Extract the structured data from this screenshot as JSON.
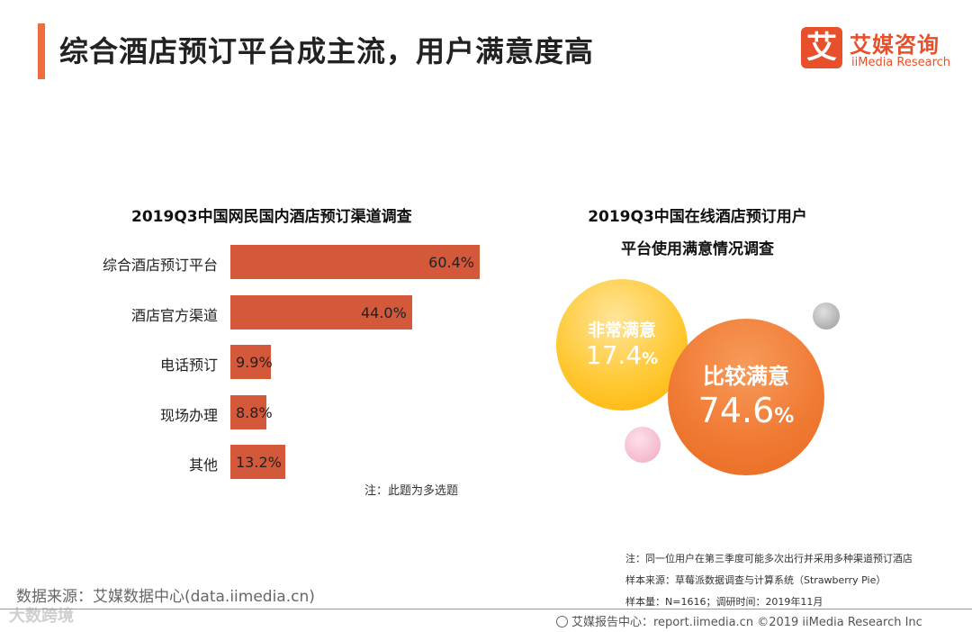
{
  "header": {
    "title": "综合酒店预订平台成主流，用户满意度高",
    "accent_color": "#ef6c3e"
  },
  "logo": {
    "mark": "艾",
    "cn": "艾媒咨询",
    "en": "iiMedia Research"
  },
  "chart_data": [
    {
      "type": "bar",
      "title": "2019Q3中国网民国内酒店预订渠道调查",
      "categories": [
        "综合酒店预订平台",
        "酒店官方渠道",
        "电话预订",
        "现场办理",
        "其他"
      ],
      "values": [
        60.4,
        44.0,
        9.9,
        8.8,
        13.2
      ],
      "value_labels": [
        "60.4%",
        "44.0%",
        "9.9%",
        "8.8%",
        "13.2%"
      ],
      "unit": "%",
      "color": "#d4583a",
      "note": "注：此题为多选题"
    },
    {
      "type": "bubble",
      "title_line1": "2019Q3中国在线酒店预订用户",
      "title_line2": "平台使用满意情况调查",
      "series": [
        {
          "name": "非常满意",
          "value": 17.4,
          "value_text": "17.4",
          "color": "#ffc935"
        },
        {
          "name": "比较满意",
          "value": 74.6,
          "value_text": "74.6",
          "color": "#f07b35"
        }
      ],
      "percent_sign": "%"
    }
  ],
  "footnotes": {
    "line1": "注：同一位用户在第三季度可能多次出行并采用多种渠道预订酒店",
    "line2": "样本来源：草莓派数据调查与计算系统（Strawberry Pie）",
    "line3": "样本量：N=1616；调研时间：2019年11月"
  },
  "source": "数据来源：艾媒数据中心(data.iimedia.cn)",
  "watermark": "大数跨境",
  "footer": "艾媒报告中心：report.iimedia.cn ©2019 iiMedia Research Inc"
}
